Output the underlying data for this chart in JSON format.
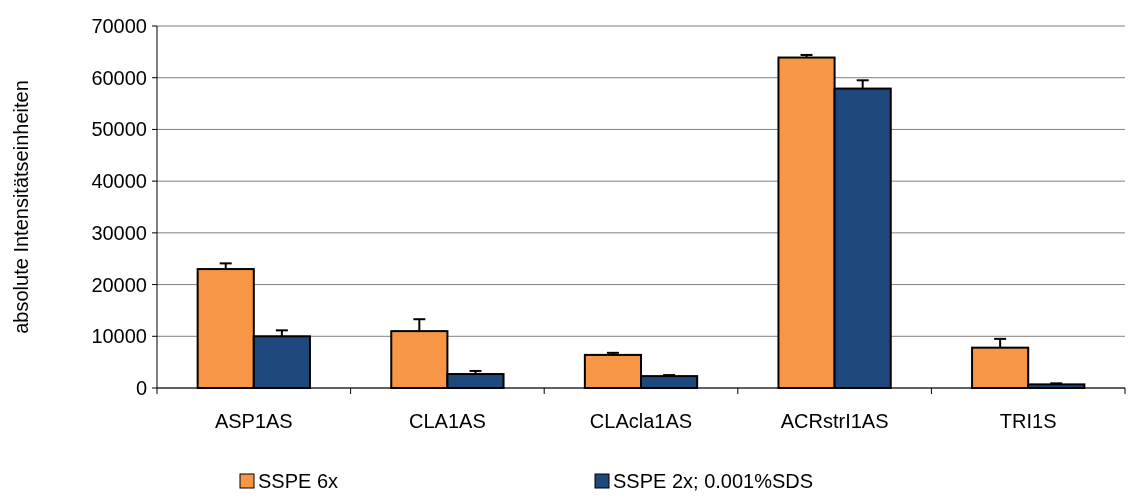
{
  "chart_data": {
    "type": "bar",
    "ylabel": "absolute Intensitätseinheiten",
    "categories": [
      "ASP1AS",
      "CLA1AS",
      "CLAcla1AS",
      "ACRstrI1AS",
      "TRI1S"
    ],
    "series": [
      {
        "name": "SSPE 6x",
        "color": "#f79646",
        "values": [
          23000,
          11000,
          6400,
          63900,
          7800
        ],
        "errors": [
          [
            23000,
            24100
          ],
          [
            11000,
            13300
          ],
          [
            6400,
            6800
          ],
          [
            63900,
            64400
          ],
          [
            7800,
            9500
          ]
        ]
      },
      {
        "name": "SSPE 2x; 0.001%SDS",
        "color": "#1f497d",
        "values": [
          10000,
          2700,
          2300,
          57900,
          700
        ],
        "errors": [
          [
            10000,
            11150
          ],
          [
            2700,
            3300
          ],
          [
            2300,
            2500
          ],
          [
            57900,
            59500
          ],
          [
            700,
            900
          ]
        ]
      }
    ],
    "ylim": [
      0,
      70000
    ],
    "yticks": [
      0,
      10000,
      20000,
      30000,
      40000,
      50000,
      60000,
      70000
    ],
    "grid": "y",
    "legend": "bottom"
  }
}
